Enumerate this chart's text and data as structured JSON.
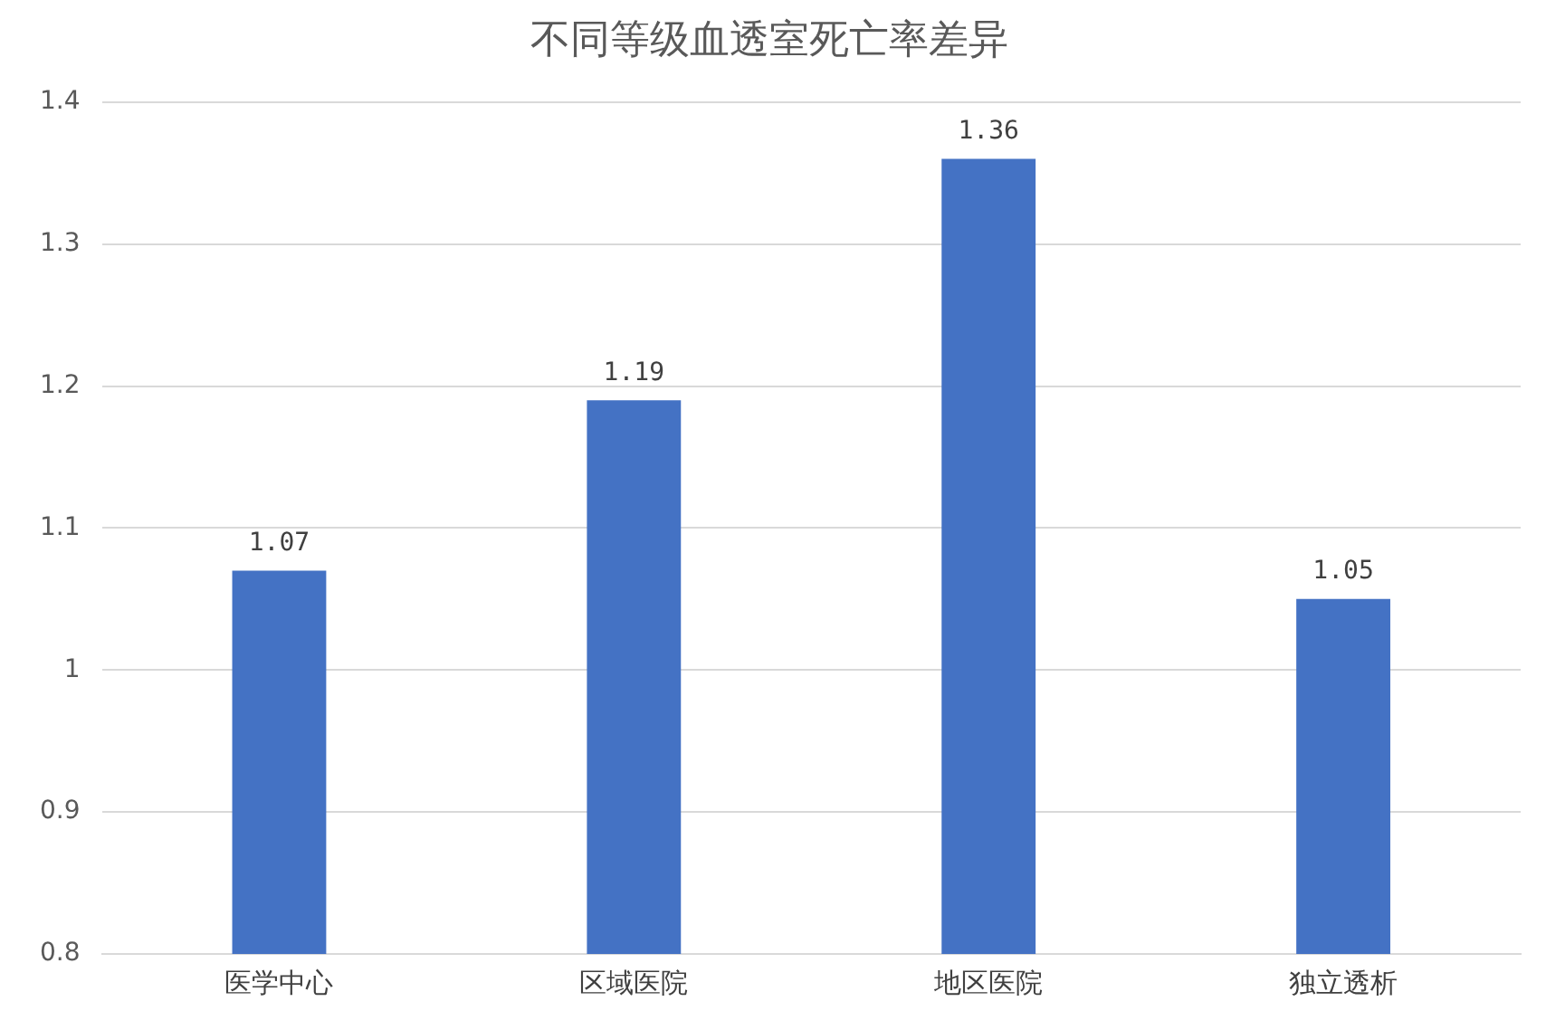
{
  "chart_data": {
    "type": "bar",
    "title": "不同等级血透室死亡率差异",
    "categories": [
      "医学中心",
      "区域医院",
      "地区医院",
      "独立透析"
    ],
    "values": [
      1.07,
      1.19,
      1.36,
      1.05
    ],
    "color": "#4472c4",
    "ylim": [
      0.8,
      1.4
    ],
    "yticks": [
      0.8,
      0.9,
      1,
      1.1,
      1.2,
      1.3,
      1.4
    ],
    "grid": "y",
    "data_labels": true,
    "legend": false
  }
}
